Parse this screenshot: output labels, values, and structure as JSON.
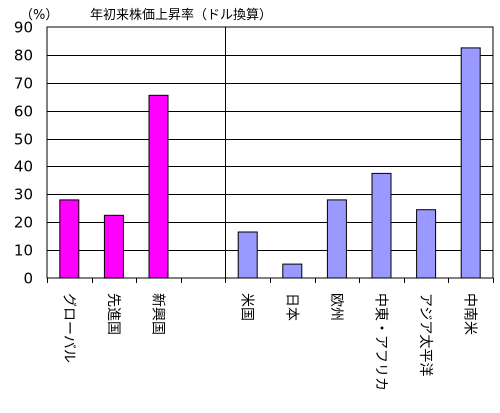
{
  "chart_data": {
    "type": "bar",
    "title": "年初来株価上昇率（ドル換算）",
    "ylabel": "（%）",
    "xlabel": "",
    "ylim": [
      0,
      90
    ],
    "yticks": [
      0,
      10,
      20,
      30,
      40,
      50,
      60,
      70,
      80,
      90
    ],
    "grid": true,
    "legend": "none",
    "colors": {
      "group_bars": "#ff00ff",
      "region_bars": "#9999ff",
      "bar_edge": "#000000",
      "grid": "#000000"
    },
    "categories": [
      "グローバル",
      "先進国",
      "新興国",
      "",
      "米国",
      "日本",
      "欧州",
      "中東・アフリカ",
      "アジア太平洋",
      "中南米"
    ],
    "values": [
      28,
      22.5,
      65.5,
      null,
      16.5,
      5,
      28,
      37.5,
      24.5,
      82.5
    ],
    "bar_groups": [
      "group",
      "group",
      "group",
      "gap",
      "region",
      "region",
      "region",
      "region",
      "region",
      "region"
    ]
  }
}
